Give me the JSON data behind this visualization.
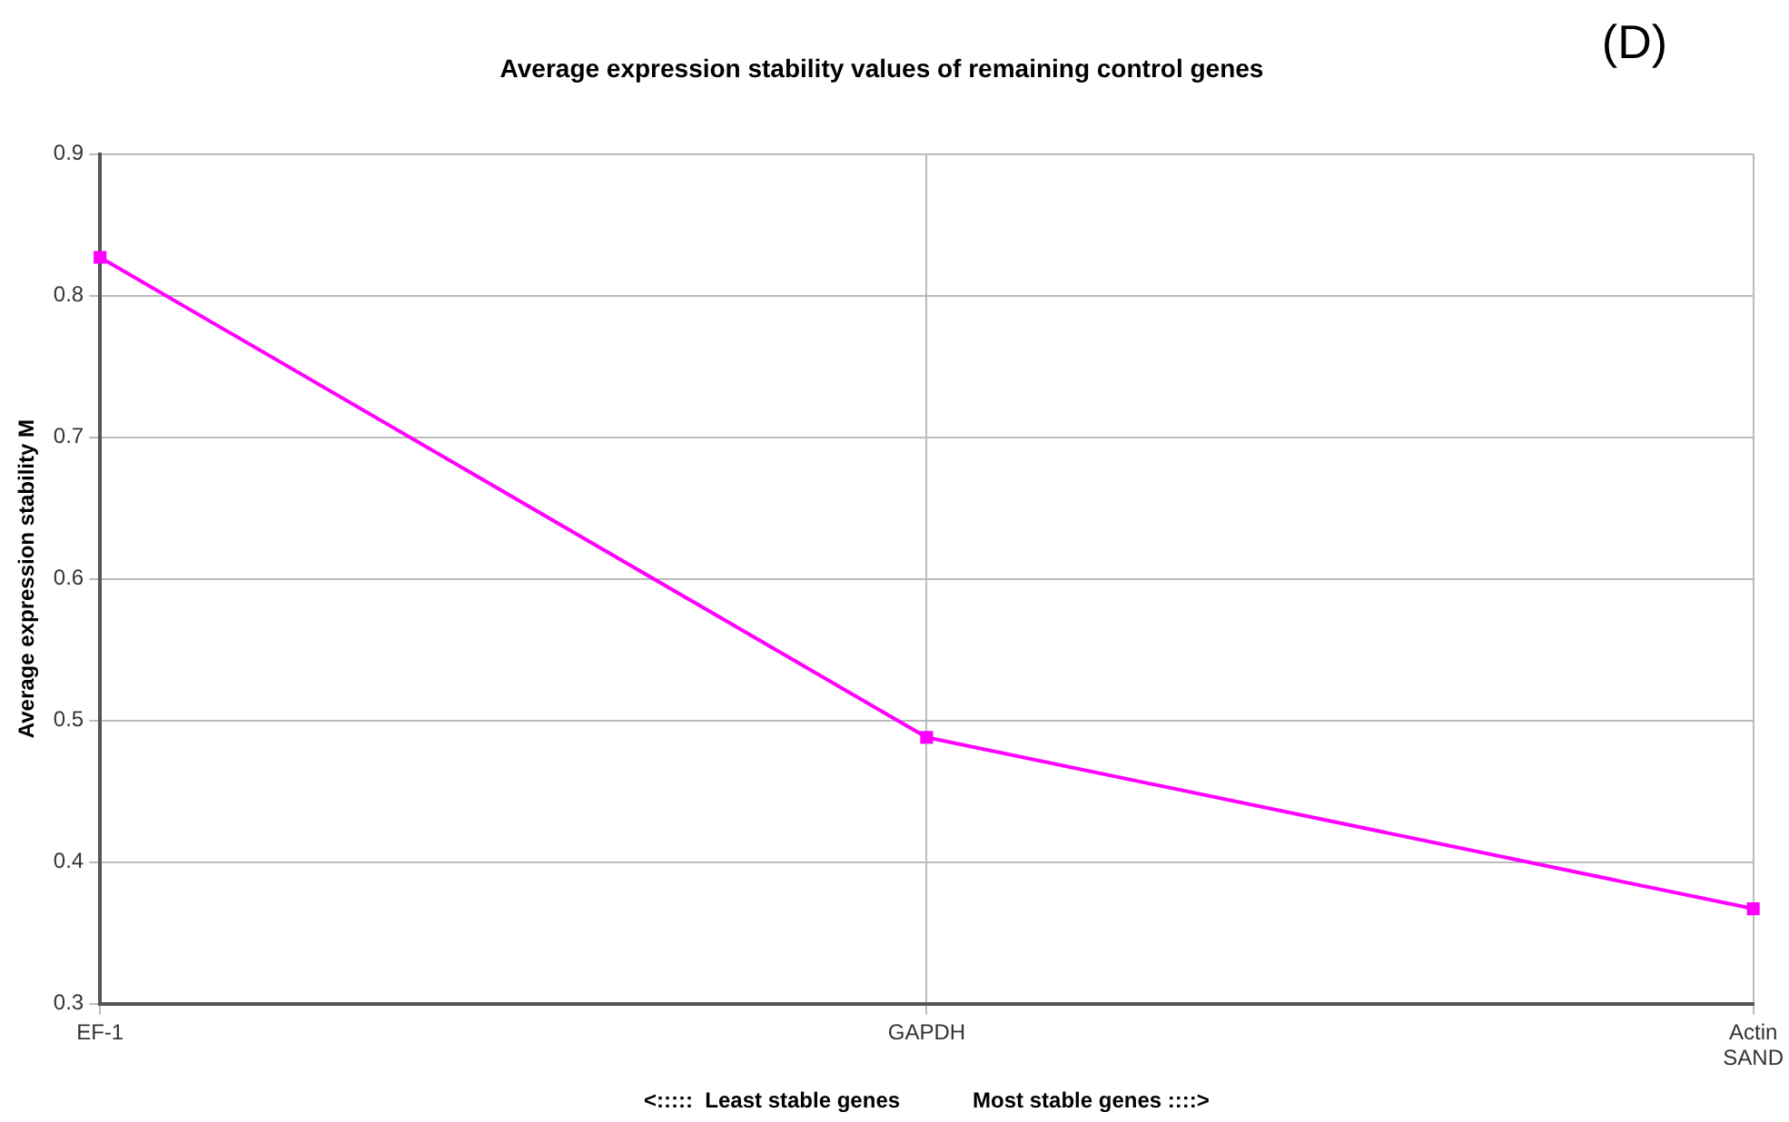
{
  "chart_data": {
    "type": "line",
    "title": "Average expression stability values of remaining control genes",
    "xlabel": "<:::::  Least stable genes            Most stable genes ::::>",
    "ylabel": "Average expression stability M",
    "annotations": [
      "(D)"
    ],
    "categories": [
      "EF-1",
      "GAPDH",
      "Actin\nSAND"
    ],
    "series": [
      {
        "color": "#ff00ff",
        "values": [
          0.827,
          0.488,
          0.367
        ]
      }
    ],
    "ylim": [
      0.3,
      0.9
    ],
    "yticks": [
      0.3,
      0.4,
      0.5,
      0.6,
      0.7,
      0.8,
      0.9
    ],
    "grid": true,
    "legend": false,
    "marker": "square",
    "line_style": "solid"
  }
}
